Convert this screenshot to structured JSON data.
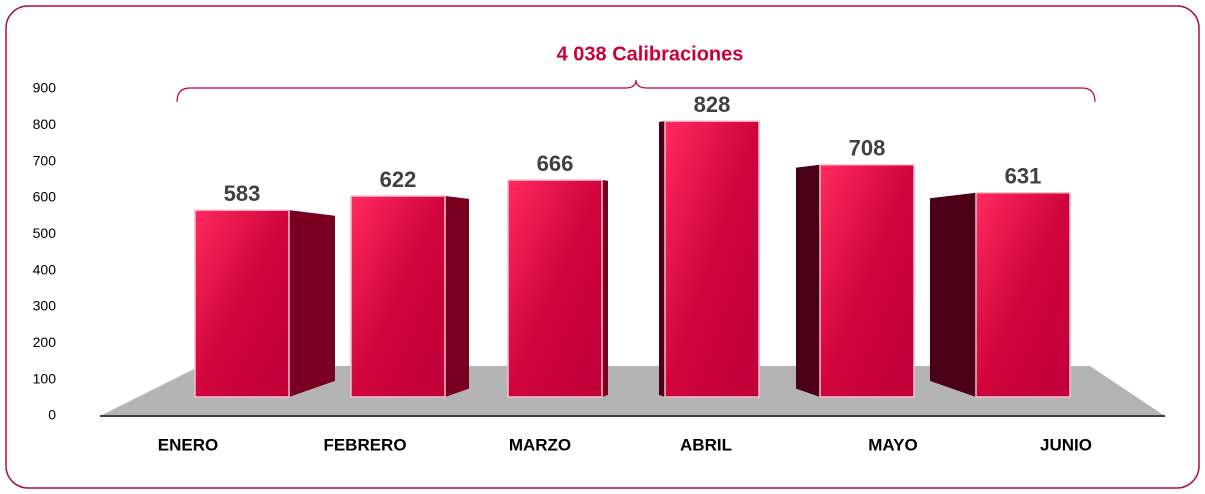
{
  "chart_data": {
    "type": "bar",
    "title": "4 038 Calibraciones",
    "categories": [
      "ENERO",
      "FEBRERO",
      "MARZO",
      "ABRIL",
      "MAYO",
      "JUNIO"
    ],
    "values": [
      583,
      622,
      666,
      828,
      708,
      631
    ],
    "color": "#d0043c",
    "ylim": [
      0,
      900
    ],
    "yticks": [
      0,
      100,
      200,
      300,
      400,
      500,
      600,
      700,
      800,
      900
    ]
  }
}
